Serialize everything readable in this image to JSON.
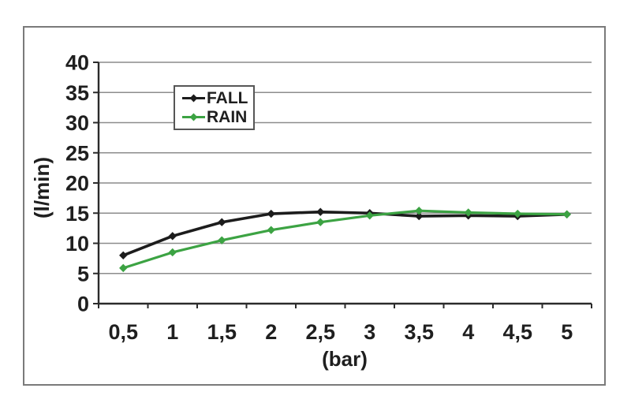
{
  "figure": {
    "background": "#ffffff",
    "frame_color": "#7a7a7a",
    "axis_color": "#2b2b2b",
    "gridline_color": "#8c8c8c",
    "text_color": "#1f1f1f"
  },
  "chart_data": {
    "type": "line",
    "title": "",
    "xlabel": "(bar)",
    "ylabel": "(l/min)",
    "categories": [
      "0,5",
      "1",
      "1,5",
      "2",
      "2,5",
      "3",
      "3,5",
      "4",
      "4,5",
      "5"
    ],
    "yticks": [
      0,
      5,
      10,
      15,
      20,
      25,
      30,
      35,
      40
    ],
    "ylim": [
      0,
      40
    ],
    "grid": "horizontal",
    "legend_position": "inside-top-center",
    "series": [
      {
        "name": "FALL",
        "color": "#1c1c1c",
        "marker": "diamond",
        "values": [
          8,
          11.2,
          13.5,
          14.9,
          15.2,
          15,
          14.5,
          14.6,
          14.5,
          14.8
        ]
      },
      {
        "name": "RAIN",
        "color": "#3ca343",
        "marker": "diamond",
        "values": [
          5.9,
          8.5,
          10.5,
          12.2,
          13.5,
          14.6,
          15.4,
          15.1,
          14.9,
          14.8
        ]
      }
    ]
  }
}
